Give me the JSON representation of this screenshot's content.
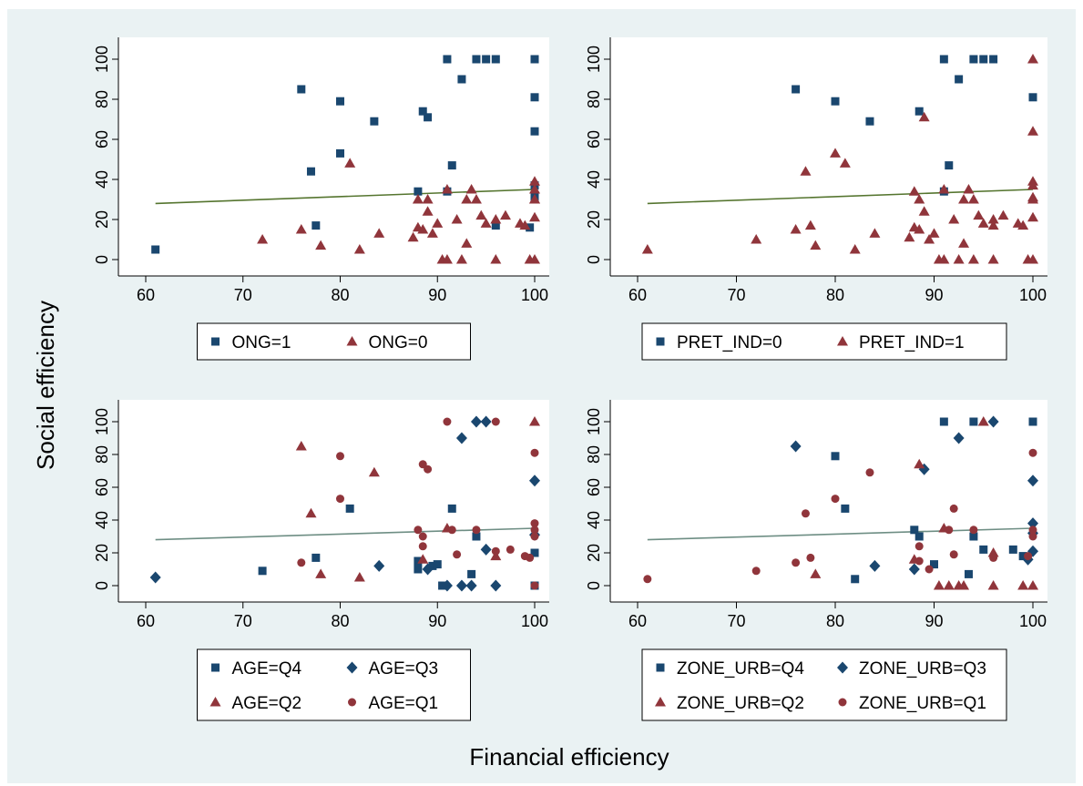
{
  "figure": {
    "ylabel": "Social efficiency",
    "xlabel": "Financial efficiency",
    "colors": {
      "outer_bg": "#eaf2f3",
      "plot_bg": "#ffffff",
      "blue": "#1a476f",
      "red": "#90353b",
      "fit_line_top": "#55752f",
      "fit_line_bottom": "#6e8e84"
    }
  },
  "chart_data": [
    {
      "type": "scatter",
      "panel": "top-left",
      "xlim": [
        60,
        100
      ],
      "ylim": [
        0,
        100
      ],
      "xticks": [
        "60",
        "70",
        "80",
        "90",
        "100"
      ],
      "yticks": [
        "0",
        "20",
        "40",
        "60",
        "80",
        "100"
      ],
      "grid": false,
      "legend_position": "bottom",
      "fit_line": {
        "x": [
          61,
          100
        ],
        "y": [
          28,
          35
        ],
        "color": "#55752f"
      },
      "series": [
        {
          "name": "ONG=1",
          "marker": "square",
          "color": "#1a476f",
          "points": [
            [
              61,
              5
            ],
            [
              76,
              85
            ],
            [
              77,
              44
            ],
            [
              77.5,
              17
            ],
            [
              80,
              79
            ],
            [
              80,
              53
            ],
            [
              83.5,
              69
            ],
            [
              88,
              34
            ],
            [
              88.5,
              74
            ],
            [
              89,
              71
            ],
            [
              91,
              34
            ],
            [
              91.5,
              47
            ],
            [
              91,
              100
            ],
            [
              92.5,
              90
            ],
            [
              94,
              100
            ],
            [
              95,
              100
            ],
            [
              96,
              100
            ],
            [
              96,
              17
            ],
            [
              99.5,
              16
            ],
            [
              100,
              100
            ],
            [
              100,
              81
            ],
            [
              100,
              64
            ],
            [
              100,
              37
            ],
            [
              100,
              31
            ]
          ]
        },
        {
          "name": "ONG=0",
          "marker": "triangle",
          "color": "#90353b",
          "points": [
            [
              72,
              10
            ],
            [
              76,
              15
            ],
            [
              78,
              7
            ],
            [
              81,
              48
            ],
            [
              82,
              5
            ],
            [
              84,
              13
            ],
            [
              87.5,
              11
            ],
            [
              88,
              16
            ],
            [
              88,
              30
            ],
            [
              88.5,
              15
            ],
            [
              89,
              24
            ],
            [
              89,
              30
            ],
            [
              89.5,
              13
            ],
            [
              90,
              18
            ],
            [
              90.5,
              0
            ],
            [
              91,
              0
            ],
            [
              91,
              35
            ],
            [
              92,
              20
            ],
            [
              92.5,
              0
            ],
            [
              93,
              30
            ],
            [
              93,
              8
            ],
            [
              93.5,
              35
            ],
            [
              94,
              30
            ],
            [
              94.5,
              22
            ],
            [
              95,
              18
            ],
            [
              96,
              0
            ],
            [
              96,
              20
            ],
            [
              97,
              22
            ],
            [
              98.5,
              18
            ],
            [
              99,
              17
            ],
            [
              99.5,
              0
            ],
            [
              100,
              39
            ],
            [
              100,
              35
            ],
            [
              100,
              30
            ],
            [
              100,
              21
            ],
            [
              100,
              30
            ],
            [
              100,
              0
            ]
          ]
        }
      ]
    },
    {
      "type": "scatter",
      "panel": "top-right",
      "xlim": [
        60,
        100
      ],
      "ylim": [
        0,
        100
      ],
      "xticks": [
        "60",
        "70",
        "80",
        "90",
        "100"
      ],
      "yticks": [
        "0",
        "20",
        "40",
        "60",
        "80",
        "100"
      ],
      "grid": false,
      "legend_position": "bottom",
      "fit_line": {
        "x": [
          61,
          100
        ],
        "y": [
          28,
          35
        ],
        "color": "#55752f"
      },
      "series": [
        {
          "name": "PRET_IND=0",
          "marker": "square",
          "color": "#1a476f",
          "points": [
            [
              76,
              85
            ],
            [
              80,
              79
            ],
            [
              83.5,
              69
            ],
            [
              88.5,
              74
            ],
            [
              91,
              34
            ],
            [
              91.5,
              47
            ],
            [
              91,
              100
            ],
            [
              92.5,
              90
            ],
            [
              94,
              100
            ],
            [
              95,
              100
            ],
            [
              96,
              100
            ],
            [
              100,
              81
            ]
          ]
        },
        {
          "name": "PRET_IND=1",
          "marker": "triangle",
          "color": "#90353b",
          "points": [
            [
              61,
              5
            ],
            [
              72,
              10
            ],
            [
              76,
              15
            ],
            [
              77,
              44
            ],
            [
              77.5,
              17
            ],
            [
              78,
              7
            ],
            [
              80,
              53
            ],
            [
              81,
              48
            ],
            [
              82,
              5
            ],
            [
              84,
              13
            ],
            [
              87.5,
              11
            ],
            [
              88,
              34
            ],
            [
              88,
              16
            ],
            [
              88.5,
              15
            ],
            [
              88.5,
              30
            ],
            [
              89,
              71
            ],
            [
              89,
              24
            ],
            [
              89.5,
              10
            ],
            [
              90,
              13
            ],
            [
              90.5,
              0
            ],
            [
              91,
              0
            ],
            [
              91,
              35
            ],
            [
              92,
              20
            ],
            [
              92.5,
              0
            ],
            [
              93,
              30
            ],
            [
              93,
              8
            ],
            [
              93.5,
              35
            ],
            [
              94,
              0
            ],
            [
              94,
              30
            ],
            [
              94.5,
              22
            ],
            [
              95,
              18
            ],
            [
              96,
              0
            ],
            [
              96,
              20
            ],
            [
              96,
              17
            ],
            [
              97,
              22
            ],
            [
              98.5,
              18
            ],
            [
              99,
              17
            ],
            [
              99.5,
              0
            ],
            [
              100,
              100
            ],
            [
              100,
              64
            ],
            [
              100,
              39
            ],
            [
              100,
              37
            ],
            [
              100,
              31
            ],
            [
              100,
              30
            ],
            [
              100,
              21
            ],
            [
              100,
              0
            ]
          ]
        }
      ]
    },
    {
      "type": "scatter",
      "panel": "bottom-left",
      "xlim": [
        60,
        100
      ],
      "ylim": [
        0,
        100
      ],
      "xticks": [
        "60",
        "70",
        "80",
        "90",
        "100"
      ],
      "yticks": [
        "0",
        "20",
        "40",
        "60",
        "80",
        "100"
      ],
      "grid": false,
      "legend_position": "bottom",
      "fit_line": {
        "x": [
          61,
          100
        ],
        "y": [
          28,
          35
        ],
        "color": "#6e8e84"
      },
      "series": [
        {
          "name": "AGE=Q4",
          "marker": "square",
          "color": "#1a476f",
          "points": [
            [
              72,
              9
            ],
            [
              77.5,
              17
            ],
            [
              81,
              47
            ],
            [
              88,
              15
            ],
            [
              88,
              10
            ],
            [
              89.5,
              12
            ],
            [
              90,
              13
            ],
            [
              90.5,
              0
            ],
            [
              91.5,
              47
            ],
            [
              93.5,
              7
            ],
            [
              94,
              30
            ],
            [
              100,
              20
            ],
            [
              100,
              0
            ]
          ]
        },
        {
          "name": "AGE=Q3",
          "marker": "diamond",
          "color": "#1a476f",
          "points": [
            [
              61,
              5
            ],
            [
              84,
              12
            ],
            [
              89,
              10
            ],
            [
              91,
              0
            ],
            [
              92.5,
              0
            ],
            [
              92.5,
              90
            ],
            [
              93.5,
              0
            ],
            [
              94,
              100
            ],
            [
              95,
              100
            ],
            [
              95,
              22
            ],
            [
              96,
              0
            ],
            [
              100,
              64
            ],
            [
              100,
              31
            ]
          ]
        },
        {
          "name": "AGE=Q2",
          "marker": "triangle",
          "color": "#90353b",
          "points": [
            [
              76,
              85
            ],
            [
              77,
              44
            ],
            [
              78,
              7
            ],
            [
              82,
              5
            ],
            [
              83.5,
              69
            ],
            [
              88.5,
              16
            ],
            [
              91,
              35
            ],
            [
              96,
              18
            ],
            [
              100,
              100
            ]
          ]
        },
        {
          "name": "AGE=Q1",
          "marker": "circle",
          "color": "#90353b",
          "points": [
            [
              76,
              14
            ],
            [
              80,
              79
            ],
            [
              80,
              53
            ],
            [
              88,
              34
            ],
            [
              88.5,
              74
            ],
            [
              88.5,
              30
            ],
            [
              89,
              71
            ],
            [
              88.5,
              24
            ],
            [
              91,
              100
            ],
            [
              91.5,
              34
            ],
            [
              92,
              19
            ],
            [
              94,
              34
            ],
            [
              96,
              100
            ],
            [
              96,
              21
            ],
            [
              97.5,
              22
            ],
            [
              99,
              18
            ],
            [
              99.5,
              17
            ],
            [
              100,
              81
            ],
            [
              100,
              38
            ],
            [
              100,
              34
            ],
            [
              100,
              30
            ],
            [
              100,
              0
            ]
          ]
        }
      ]
    },
    {
      "type": "scatter",
      "panel": "bottom-right",
      "xlim": [
        60,
        100
      ],
      "ylim": [
        0,
        100
      ],
      "xticks": [
        "60",
        "70",
        "80",
        "90",
        "100"
      ],
      "yticks": [
        "0",
        "20",
        "40",
        "60",
        "80",
        "100"
      ],
      "grid": false,
      "legend_position": "bottom",
      "fit_line": {
        "x": [
          61,
          100
        ],
        "y": [
          28,
          35
        ],
        "color": "#6e8e84"
      },
      "series": [
        {
          "name": "ZONE_URB=Q4",
          "marker": "square",
          "color": "#1a476f",
          "points": [
            [
              80,
              79
            ],
            [
              81,
              47
            ],
            [
              82,
              4
            ],
            [
              88,
              34
            ],
            [
              88.5,
              30
            ],
            [
              90,
              13
            ],
            [
              91,
              100
            ],
            [
              93.5,
              7
            ],
            [
              94,
              100
            ],
            [
              94,
              30
            ],
            [
              95,
              22
            ],
            [
              98,
              22
            ],
            [
              99,
              18
            ],
            [
              100,
              100
            ]
          ]
        },
        {
          "name": "ZONE_URB=Q3",
          "marker": "diamond",
          "color": "#1a476f",
          "points": [
            [
              76,
              85
            ],
            [
              84,
              12
            ],
            [
              88,
              10
            ],
            [
              89,
              71
            ],
            [
              92.5,
              90
            ],
            [
              96,
              100
            ],
            [
              99.5,
              16
            ],
            [
              100,
              64
            ],
            [
              100,
              38
            ],
            [
              100,
              32
            ],
            [
              100,
              21
            ]
          ]
        },
        {
          "name": "ZONE_URB=Q2",
          "marker": "triangle",
          "color": "#90353b",
          "points": [
            [
              78,
              7
            ],
            [
              88,
              16
            ],
            [
              88.5,
              74
            ],
            [
              90.5,
              0
            ],
            [
              91,
              35
            ],
            [
              91.5,
              0
            ],
            [
              92.5,
              0
            ],
            [
              93,
              0
            ],
            [
              95,
              100
            ],
            [
              96,
              20
            ],
            [
              96,
              0
            ],
            [
              99,
              0
            ],
            [
              100,
              0
            ]
          ]
        },
        {
          "name": "ZONE_URB=Q1",
          "marker": "circle",
          "color": "#90353b",
          "points": [
            [
              61,
              4
            ],
            [
              72,
              9
            ],
            [
              76,
              14
            ],
            [
              77,
              44
            ],
            [
              77.5,
              17
            ],
            [
              80,
              53
            ],
            [
              83.5,
              69
            ],
            [
              88.5,
              15
            ],
            [
              88.5,
              24
            ],
            [
              89.5,
              10
            ],
            [
              91.5,
              34
            ],
            [
              92,
              47
            ],
            [
              92,
              19
            ],
            [
              94,
              34
            ],
            [
              96,
              17
            ],
            [
              99.5,
              18
            ],
            [
              100,
              81
            ],
            [
              100,
              30
            ],
            [
              100,
              34
            ]
          ]
        }
      ]
    }
  ]
}
